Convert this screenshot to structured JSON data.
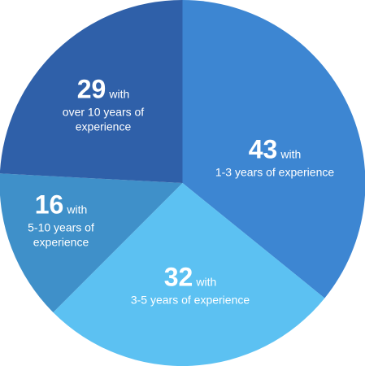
{
  "chart_data": {
    "type": "pie",
    "categories": [
      "1-3 years of experience",
      "3-5 years of experience",
      "5-10 years of experience",
      "over 10 years of experience"
    ],
    "values": [
      43,
      32,
      16,
      29
    ],
    "colors": [
      "#3d86d2",
      "#5cc1f2",
      "#3f90c9",
      "#2f60a9"
    ],
    "connector": "with",
    "start_angle": 0,
    "direction": "clockwise"
  }
}
